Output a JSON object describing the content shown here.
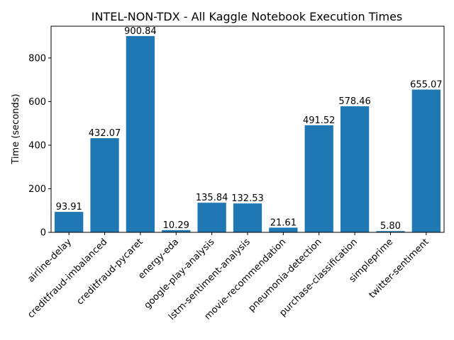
{
  "chart_data": {
    "type": "bar",
    "title": "INTEL-NON-TDX - All Kaggle Notebook Execution Times",
    "xlabel": "",
    "ylabel": "Time (seconds)",
    "ylim": [
      0,
      945.88
    ],
    "yticks": [
      0,
      200,
      400,
      600,
      800
    ],
    "grid": false,
    "bar_color": "#1f77b4",
    "categories": [
      "airline-delay",
      "creditfraud-imbalanced",
      "creditfraud-pycaret",
      "energy-eda",
      "google-play-analysis",
      "lstm-sentiment-analysis",
      "movie-recommendation",
      "pneumonia-detection",
      "purchase-classification",
      "simpleprime",
      "twitter-sentiment"
    ],
    "values": [
      93.91,
      432.07,
      900.84,
      10.29,
      135.84,
      132.53,
      21.61,
      491.52,
      578.46,
      5.8,
      655.07
    ],
    "value_labels": [
      "93.91",
      "432.07",
      "900.84",
      "10.29",
      "135.84",
      "132.53",
      "21.61",
      "491.52",
      "578.46",
      "5.80",
      "655.07"
    ]
  }
}
